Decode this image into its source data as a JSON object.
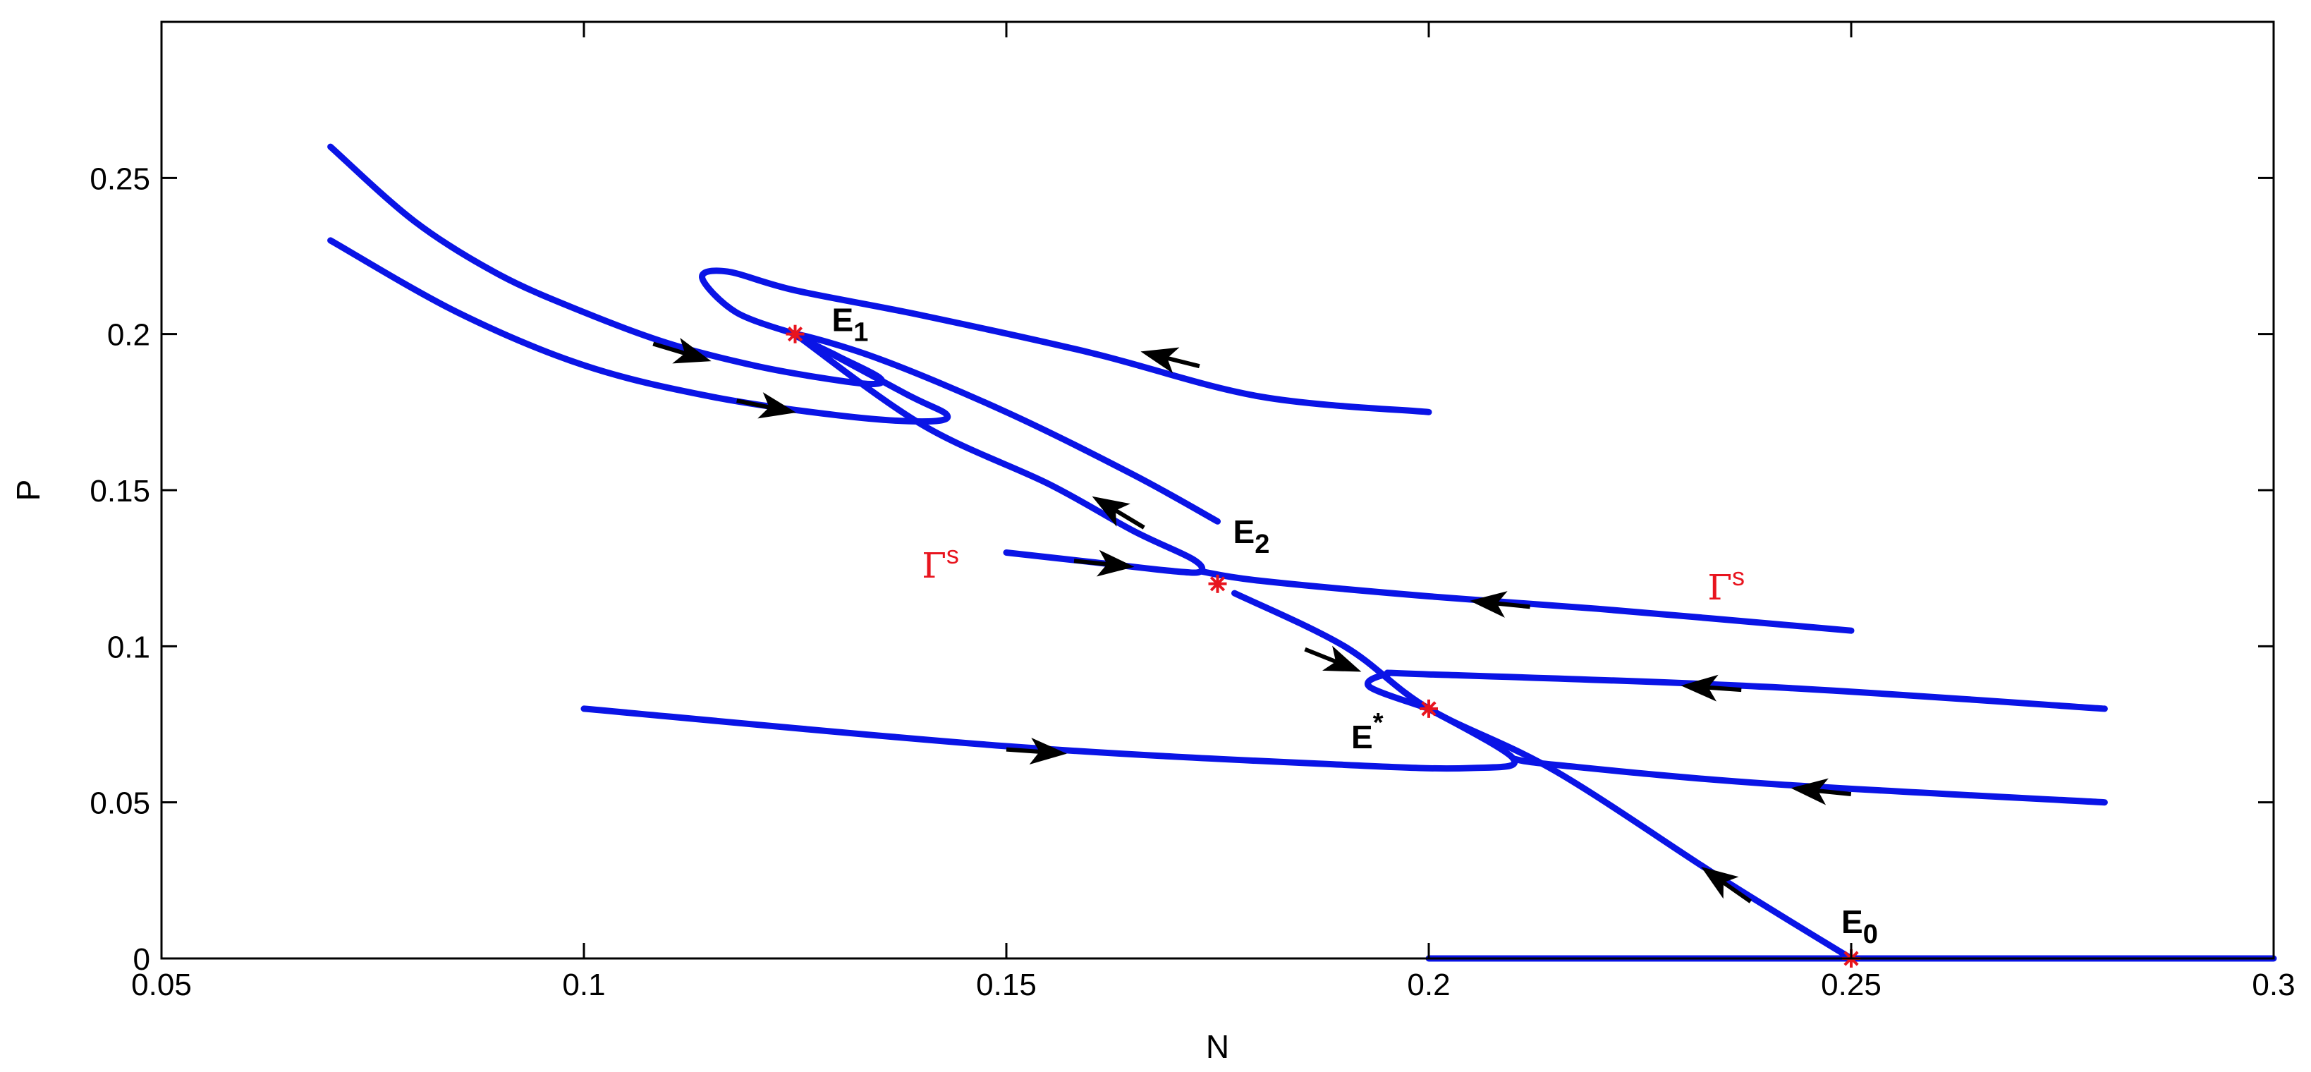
{
  "chart_data": {
    "type": "line",
    "title": "",
    "xlabel": "N",
    "ylabel": "P",
    "xlim": [
      0.05,
      0.3
    ],
    "ylim": [
      0,
      0.3
    ],
    "xticks": [
      0.05,
      0.1,
      0.15,
      0.2,
      0.25,
      0.3
    ],
    "xtick_labels": [
      "0.05",
      "0.1",
      "0.15",
      "0.2",
      "0.25",
      "0.3"
    ],
    "yticks": [
      0,
      0.05,
      0.1,
      0.15,
      0.2,
      0.25
    ],
    "ytick_labels": [
      "0",
      "0.05",
      "0.1",
      "0.15",
      "0.2",
      "0.25"
    ],
    "grid": false,
    "colors": {
      "trajectory": "#0a14e6",
      "equilibrium": "#e8141e",
      "arrow": "#000000",
      "gamma": "#e8141e"
    },
    "trajectories": [
      {
        "points": [
          [
            0.07,
            0.26
          ],
          [
            0.08,
            0.236
          ],
          [
            0.09,
            0.219
          ],
          [
            0.1,
            0.207
          ],
          [
            0.11,
            0.197
          ],
          [
            0.12,
            0.19
          ],
          [
            0.128,
            0.186
          ],
          [
            0.134,
            0.184
          ],
          [
            0.135,
            0.186
          ],
          [
            0.13,
            0.193
          ],
          [
            0.125,
            0.2
          ],
          [
            0.135,
            0.192
          ],
          [
            0.15,
            0.175
          ],
          [
            0.165,
            0.155
          ],
          [
            0.175,
            0.14
          ]
        ]
      },
      {
        "points": [
          [
            0.07,
            0.23
          ],
          [
            0.085,
            0.207
          ],
          [
            0.1,
            0.19
          ],
          [
            0.115,
            0.18
          ],
          [
            0.13,
            0.174
          ],
          [
            0.14,
            0.172
          ],
          [
            0.143,
            0.174
          ],
          [
            0.138,
            0.181
          ],
          [
            0.125,
            0.2
          ]
        ]
      },
      {
        "points": [
          [
            0.2,
            0.175
          ],
          [
            0.18,
            0.18
          ],
          [
            0.16,
            0.194
          ],
          [
            0.14,
            0.206
          ],
          [
            0.125,
            0.214
          ],
          [
            0.117,
            0.22
          ],
          [
            0.114,
            0.218
          ],
          [
            0.118,
            0.207
          ],
          [
            0.125,
            0.2
          ]
        ]
      },
      {
        "points": [
          [
            0.15,
            0.13
          ],
          [
            0.16,
            0.127
          ],
          [
            0.17,
            0.124
          ],
          [
            0.173,
            0.124
          ],
          [
            0.172,
            0.128
          ],
          [
            0.165,
            0.137
          ],
          [
            0.155,
            0.152
          ],
          [
            0.14,
            0.171
          ],
          [
            0.125,
            0.2
          ]
        ]
      },
      {
        "points": [
          [
            0.25,
            0.105
          ],
          [
            0.22,
            0.112
          ],
          [
            0.2,
            0.116
          ],
          [
            0.18,
            0.121
          ],
          [
            0.173,
            0.124
          ]
        ]
      },
      {
        "points": [
          [
            0.177,
            0.117
          ],
          [
            0.19,
            0.1
          ],
          [
            0.2,
            0.08
          ],
          [
            0.215,
            0.06
          ],
          [
            0.235,
            0.025
          ],
          [
            0.25,
            0
          ]
        ]
      },
      {
        "points": [
          [
            0.28,
            0.08
          ],
          [
            0.24,
            0.087
          ],
          [
            0.2,
            0.091
          ],
          [
            0.195,
            0.091
          ],
          [
            0.193,
            0.087
          ],
          [
            0.2,
            0.08
          ]
        ]
      },
      {
        "points": [
          [
            0.1,
            0.08
          ],
          [
            0.15,
            0.068
          ],
          [
            0.19,
            0.062
          ],
          [
            0.205,
            0.061
          ],
          [
            0.21,
            0.064
          ],
          [
            0.2,
            0.08
          ]
        ]
      },
      {
        "points": [
          [
            0.28,
            0.05
          ],
          [
            0.24,
            0.056
          ],
          [
            0.215,
            0.062
          ],
          [
            0.21,
            0.064
          ]
        ]
      },
      {
        "points": [
          [
            0.2,
            0
          ],
          [
            0.3,
            0
          ]
        ]
      }
    ],
    "arrows": [
      {
        "at": [
          0.113,
          0.193
        ],
        "dir": [
          1,
          -0.3
        ]
      },
      {
        "at": [
          0.123,
          0.176
        ],
        "dir": [
          1,
          -0.2
        ]
      },
      {
        "at": [
          0.168,
          0.193
        ],
        "dir": [
          -1,
          0.25
        ]
      },
      {
        "at": [
          0.162,
          0.145
        ],
        "dir": [
          -1,
          0.6
        ]
      },
      {
        "at": [
          0.163,
          0.126
        ],
        "dir": [
          1,
          -0.1
        ]
      },
      {
        "at": [
          0.207,
          0.114
        ],
        "dir": [
          -1,
          0.1
        ]
      },
      {
        "at": [
          0.19,
          0.094
        ],
        "dir": [
          1,
          -0.4
        ]
      },
      {
        "at": [
          0.232,
          0.087
        ],
        "dir": [
          -1,
          0.07
        ]
      },
      {
        "at": [
          0.155,
          0.066
        ],
        "dir": [
          1,
          -0.07
        ]
      },
      {
        "at": [
          0.245,
          0.054
        ],
        "dir": [
          -1,
          0.1
        ]
      },
      {
        "at": [
          0.234,
          0.026
        ],
        "dir": [
          -1,
          0.7
        ]
      }
    ],
    "equilibria": [
      {
        "name": "E",
        "sub": "1",
        "sup": "",
        "N": 0.125,
        "P": 0.2
      },
      {
        "name": "E",
        "sub": "2",
        "sup": "",
        "N": 0.175,
        "P": 0.12
      },
      {
        "name": "E",
        "sub": "",
        "sup": "*",
        "N": 0.2,
        "P": 0.08
      },
      {
        "name": "E",
        "sub": "0",
        "sup": "",
        "N": 0.25,
        "P": 0
      }
    ],
    "annotations": [
      {
        "text": "Γ",
        "sup": "s",
        "N": 0.14,
        "P": 0.122
      },
      {
        "text": "Γ",
        "sup": "s",
        "N": 0.233,
        "P": 0.115
      }
    ]
  }
}
